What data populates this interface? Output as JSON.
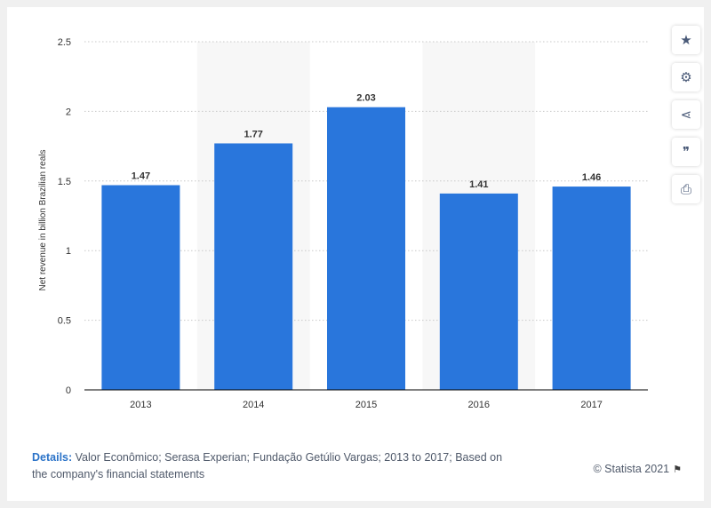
{
  "chart_data": {
    "type": "bar",
    "categories": [
      "2013",
      "2014",
      "2015",
      "2016",
      "2017"
    ],
    "values": [
      1.47,
      1.77,
      2.03,
      1.41,
      1.46
    ],
    "data_labels": [
      "1.47",
      "1.77",
      "2.03",
      "1.41",
      "1.46"
    ],
    "ylabel": "Net revenue in billion Brazilian reals",
    "xlabel": "",
    "ylim": [
      0,
      2.5
    ],
    "yticks": [
      0,
      0.5,
      1,
      1.5,
      2,
      2.5
    ],
    "ytick_labels": [
      "0",
      "0.5",
      "1",
      "1.5",
      "2",
      "2.5"
    ],
    "bar_color": "#2976dc",
    "alt_band_color": "#f7f7f7",
    "grid": true
  },
  "toolbar": {
    "star": "★",
    "settings": "⚙",
    "share": "⋖",
    "cite": "❞",
    "print": "⎙"
  },
  "footer": {
    "details_label": "Details:",
    "details_text": " Valor Econômico; Serasa Experian; Fundação Getúlio Vargas; 2013 to 2017; Based on the company's financial statements",
    "credit": "© Statista 2021",
    "flag": "⚑"
  }
}
